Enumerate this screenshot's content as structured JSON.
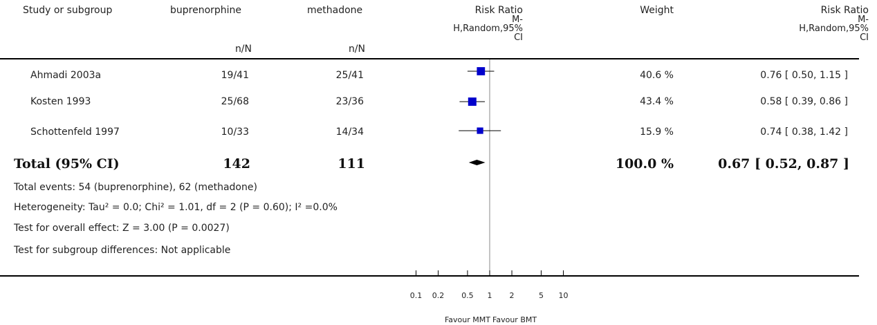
{
  "header": {
    "col_study": "Study or subgroup",
    "col_exp": "buprenorphine",
    "col_ctrl": "methadone",
    "col_exp_sub": "n/N",
    "col_ctrl_sub": "n/N",
    "col_rr_lines": [
      "Risk Ratio",
      "M-",
      "H,Random,95%",
      "CI"
    ],
    "col_weight": "Weight",
    "col_rr2_lines": [
      "Risk Ratio",
      "M-",
      "H,Random,95%",
      "CI"
    ]
  },
  "rows": [
    {
      "study": "Ahmadi 2003a",
      "exp": "19/41",
      "ctrl": "25/41",
      "weight": "40.6 %",
      "ci_text": "0.76 [ 0.50, 1.15 ]"
    },
    {
      "study": "Kosten 1993",
      "exp": "25/68",
      "ctrl": "23/36",
      "weight": "43.4 %",
      "ci_text": "0.58 [ 0.39, 0.86 ]"
    },
    {
      "study": "Schottenfeld 1997",
      "exp": "10/33",
      "ctrl": "14/34",
      "weight": "15.9 %",
      "ci_text": "0.74 [ 0.38, 1.42 ]"
    }
  ],
  "total": {
    "label": "Total (95% CI)",
    "exp": "142",
    "ctrl": "111",
    "weight": "100.0 %",
    "ci_text": "0.67 [ 0.52, 0.87 ]"
  },
  "footnotes": [
    "Total events: 54 (buprenorphine), 62 (methadone)",
    "Heterogeneity: Tau² = 0.0; Chi² = 1.01, df = 2 (P = 0.60); I² =0.0%",
    "Test for overall effect: Z = 3.00 (P = 0.0027)",
    "Test for subgroup differences: Not applicable"
  ],
  "colors": {
    "marker": "#0000cc",
    "line": "#000000"
  },
  "chart_data": {
    "type": "scatter",
    "scale": "log",
    "xlim": [
      0.1,
      10
    ],
    "x_ticks": [
      "0.1",
      "0.2",
      "0.5",
      "1",
      "2",
      "5",
      "10"
    ],
    "x_tick_values": [
      0.1,
      0.2,
      0.5,
      1,
      2,
      5,
      10
    ],
    "favour_left": "Favour MMT",
    "favour_right": "Favour BMT",
    "series": [
      {
        "study": "Ahmadi 2003a",
        "estimate": 0.76,
        "lower": 0.5,
        "upper": 1.15,
        "weight": 40.6
      },
      {
        "study": "Kosten 1993",
        "estimate": 0.58,
        "lower": 0.39,
        "upper": 0.86,
        "weight": 43.4
      },
      {
        "study": "Schottenfeld 1997",
        "estimate": 0.74,
        "lower": 0.38,
        "upper": 1.42,
        "weight": 15.9
      }
    ],
    "total": {
      "estimate": 0.67,
      "lower": 0.52,
      "upper": 0.87
    }
  }
}
